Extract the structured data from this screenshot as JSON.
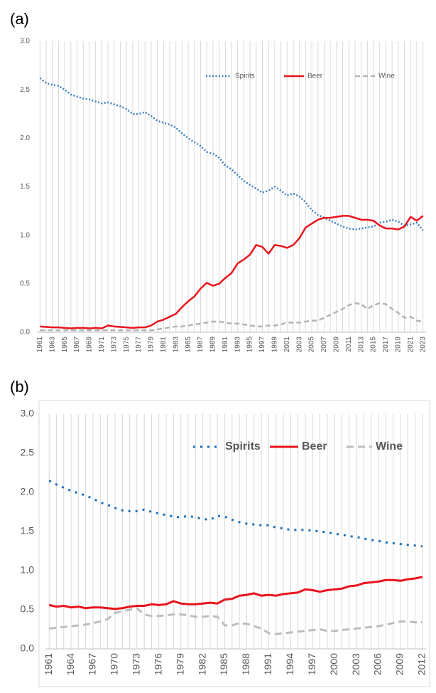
{
  "chart_data": [
    {
      "type": "line",
      "title": "(a)",
      "x": [
        1961,
        1962,
        1963,
        1964,
        1965,
        1966,
        1967,
        1968,
        1969,
        1970,
        1971,
        1972,
        1973,
        1974,
        1975,
        1976,
        1977,
        1978,
        1979,
        1980,
        1981,
        1982,
        1983,
        1984,
        1985,
        1986,
        1987,
        1988,
        1989,
        1990,
        1991,
        1992,
        1993,
        1994,
        1995,
        1996,
        1997,
        1998,
        1999,
        2000,
        2001,
        2002,
        2003,
        2004,
        2005,
        2006,
        2007,
        2008,
        2009,
        2010,
        2011,
        2012,
        2013,
        2014,
        2015,
        2016,
        2017,
        2018,
        2019,
        2020,
        2021,
        2022,
        2023
      ],
      "series": [
        {
          "name": "Spirits",
          "color": "#3c7fc0",
          "linestyle": "dotted",
          "values": [
            2.62,
            2.57,
            2.55,
            2.54,
            2.5,
            2.45,
            2.43,
            2.41,
            2.4,
            2.38,
            2.36,
            2.37,
            2.35,
            2.33,
            2.3,
            2.25,
            2.25,
            2.27,
            2.23,
            2.18,
            2.16,
            2.14,
            2.11,
            2.05,
            2.0,
            1.96,
            1.92,
            1.86,
            1.84,
            1.8,
            1.72,
            1.68,
            1.62,
            1.56,
            1.52,
            1.48,
            1.44,
            1.46,
            1.5,
            1.46,
            1.41,
            1.43,
            1.4,
            1.34,
            1.26,
            1.21,
            1.18,
            1.15,
            1.12,
            1.09,
            1.07,
            1.06,
            1.07,
            1.08,
            1.09,
            1.13,
            1.14,
            1.16,
            1.14,
            1.1,
            1.11,
            1.13,
            1.05
          ]
        },
        {
          "name": "Beer",
          "color": "#e8141c",
          "linestyle": "solid",
          "values": [
            0.06,
            0.055,
            0.05,
            0.05,
            0.045,
            0.04,
            0.045,
            0.045,
            0.04,
            0.045,
            0.04,
            0.07,
            0.06,
            0.055,
            0.05,
            0.045,
            0.05,
            0.05,
            0.07,
            0.11,
            0.13,
            0.16,
            0.19,
            0.26,
            0.32,
            0.37,
            0.45,
            0.51,
            0.48,
            0.5,
            0.56,
            0.61,
            0.71,
            0.75,
            0.8,
            0.9,
            0.88,
            0.81,
            0.9,
            0.89,
            0.87,
            0.9,
            0.97,
            1.08,
            1.12,
            1.16,
            1.18,
            1.18,
            1.19,
            1.2,
            1.2,
            1.18,
            1.16,
            1.16,
            1.15,
            1.1,
            1.07,
            1.07,
            1.06,
            1.09,
            1.19,
            1.15,
            1.2
          ]
        },
        {
          "name": "Wine",
          "color": "#b4b4b4",
          "linestyle": "dashed",
          "values": [
            0.02,
            0.02,
            0.02,
            0.02,
            0.02,
            0.02,
            0.02,
            0.02,
            0.02,
            0.02,
            0.02,
            0.02,
            0.02,
            0.02,
            0.02,
            0.02,
            0.02,
            0.02,
            0.02,
            0.03,
            0.04,
            0.05,
            0.06,
            0.06,
            0.07,
            0.08,
            0.09,
            0.1,
            0.11,
            0.11,
            0.1,
            0.09,
            0.09,
            0.08,
            0.07,
            0.06,
            0.06,
            0.07,
            0.07,
            0.08,
            0.1,
            0.1,
            0.1,
            0.11,
            0.12,
            0.12,
            0.15,
            0.18,
            0.21,
            0.24,
            0.28,
            0.3,
            0.29,
            0.24,
            0.28,
            0.3,
            0.29,
            0.24,
            0.2,
            0.15,
            0.16,
            0.12,
            0.11
          ]
        }
      ],
      "xlim": [
        1960.5,
        2023.5
      ],
      "xticks": [
        1961,
        1963,
        1965,
        1967,
        1969,
        1971,
        1973,
        1975,
        1977,
        1979,
        1981,
        1983,
        1985,
        1987,
        1989,
        1991,
        1993,
        1995,
        1997,
        1999,
        2001,
        2003,
        2005,
        2007,
        2009,
        2011,
        2013,
        2015,
        2017,
        2019,
        2021,
        2023
      ],
      "ylim": [
        0,
        3
      ],
      "yticks": [
        {
          "value": 0,
          "label": "0.0"
        },
        0.5,
        {
          "value": 1,
          "label": "1.0"
        },
        1.5,
        {
          "value": 2,
          "label": "2.0"
        },
        2.5,
        {
          "value": 3,
          "label": "3.0"
        }
      ],
      "grid": true
    },
    {
      "type": "line",
      "title": "(b)",
      "x": [
        1961,
        1962,
        1963,
        1964,
        1965,
        1966,
        1967,
        1968,
        1969,
        1970,
        1971,
        1972,
        1973,
        1974,
        1975,
        1976,
        1977,
        1978,
        1979,
        1980,
        1981,
        1982,
        1983,
        1984,
        1985,
        1986,
        1987,
        1988,
        1989,
        1990,
        1991,
        1992,
        1993,
        1994,
        1995,
        1996,
        1997,
        1998,
        1999,
        2000,
        2001,
        2002,
        2003,
        2004,
        2005,
        2006,
        2007,
        2008,
        2009,
        2010,
        2011,
        2012
      ],
      "series": [
        {
          "name": "Spirits",
          "color": "#1f6fb4",
          "linestyle": "dotted",
          "values": [
            2.15,
            2.1,
            2.06,
            2.02,
            1.99,
            1.96,
            1.92,
            1.87,
            1.84,
            1.8,
            1.77,
            1.76,
            1.76,
            1.78,
            1.75,
            1.73,
            1.71,
            1.69,
            1.68,
            1.7,
            1.68,
            1.66,
            1.65,
            1.7,
            1.69,
            1.65,
            1.62,
            1.6,
            1.59,
            1.58,
            1.58,
            1.55,
            1.54,
            1.52,
            1.52,
            1.52,
            1.51,
            1.5,
            1.49,
            1.47,
            1.46,
            1.44,
            1.43,
            1.41,
            1.39,
            1.38,
            1.36,
            1.35,
            1.34,
            1.33,
            1.32,
            1.31
          ]
        },
        {
          "name": "Beer",
          "color": "#e8141c",
          "linestyle": "solid",
          "values": [
            0.56,
            0.54,
            0.55,
            0.53,
            0.54,
            0.52,
            0.53,
            0.53,
            0.52,
            0.51,
            0.52,
            0.54,
            0.55,
            0.55,
            0.57,
            0.56,
            0.57,
            0.61,
            0.58,
            0.57,
            0.57,
            0.58,
            0.59,
            0.58,
            0.63,
            0.64,
            0.68,
            0.69,
            0.71,
            0.68,
            0.69,
            0.68,
            0.7,
            0.71,
            0.72,
            0.76,
            0.75,
            0.73,
            0.75,
            0.76,
            0.77,
            0.8,
            0.81,
            0.84,
            0.85,
            0.86,
            0.88,
            0.88,
            0.87,
            0.89,
            0.9,
            0.92
          ]
        },
        {
          "name": "Wine",
          "color": "#bdbdbd",
          "linestyle": "dashed",
          "values": [
            0.26,
            0.27,
            0.28,
            0.29,
            0.3,
            0.31,
            0.33,
            0.35,
            0.38,
            0.46,
            0.48,
            0.5,
            0.52,
            0.44,
            0.42,
            0.42,
            0.43,
            0.44,
            0.44,
            0.43,
            0.41,
            0.41,
            0.42,
            0.41,
            0.3,
            0.3,
            0.33,
            0.32,
            0.29,
            0.26,
            0.2,
            0.19,
            0.2,
            0.21,
            0.22,
            0.23,
            0.24,
            0.25,
            0.23,
            0.23,
            0.24,
            0.25,
            0.26,
            0.27,
            0.28,
            0.29,
            0.31,
            0.33,
            0.35,
            0.35,
            0.34,
            0.34
          ]
        }
      ],
      "xlim": [
        1960.5,
        2012.5
      ],
      "xticks": [
        1961,
        1964,
        1967,
        1970,
        1973,
        1976,
        1979,
        1982,
        1985,
        1988,
        1991,
        1994,
        1997,
        2000,
        2003,
        2006,
        2009,
        2012
      ],
      "ylim": [
        0,
        3
      ],
      "yticks": [
        {
          "value": 0,
          "label": "0.0"
        },
        0.5,
        {
          "value": 1,
          "label": "1.0"
        },
        1.5,
        {
          "value": 2,
          "label": "2.0"
        },
        2.5,
        {
          "value": 3,
          "label": "3.0"
        }
      ],
      "grid": true
    }
  ]
}
